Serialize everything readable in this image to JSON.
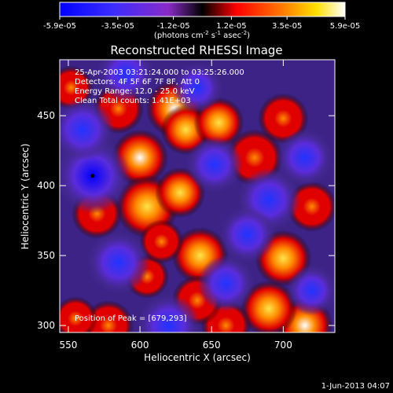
{
  "chart_data": {
    "type": "heatmap",
    "title": "Reconstructed RHESSI Image",
    "xlabel": "Heliocentric X (arcsec)",
    "ylabel": "Heliocentric Y (arcsec)",
    "xlim": [
      544,
      736
    ],
    "ylim": [
      295,
      490
    ],
    "x_ticks": [
      550,
      600,
      650,
      700
    ],
    "y_ticks": [
      300,
      350,
      400,
      450
    ],
    "colorbar": {
      "min": -5.9e-05,
      "max": 5.9e-05,
      "tick_labels": [
        "-5.9e-05",
        "-3.5e-05",
        "-1.2e-05",
        "1.2e-05",
        "3.5e-05",
        "5.9e-05"
      ],
      "units_label": "(photons cm",
      "units_exp1": "-2",
      "units_mid": " s",
      "units_exp2": "-1",
      "units_mid2": " asec",
      "units_exp3": "-2",
      "units_end": ")"
    },
    "annotations": [
      "25-Apr-2003 03:21:24.000 to 03:25:26.000",
      "Detectors: 4F 5F 6F 7F 8F, Att 0",
      "Energy Range: 12.0 - 25.0 keV",
      "Clean     Total counts: 1.41E+03"
    ],
    "peak_label": "Position of Peak = [679,293]",
    "marker": {
      "x": 567,
      "y": 407
    },
    "blobs": [
      {
        "x": 624,
        "y": 455,
        "v": 1.0,
        "r": 9
      },
      {
        "x": 600,
        "y": 420,
        "v": 0.9,
        "r": 9
      },
      {
        "x": 605,
        "y": 385,
        "v": 0.75,
        "r": 10
      },
      {
        "x": 632,
        "y": 440,
        "v": 0.75,
        "r": 8
      },
      {
        "x": 628,
        "y": 395,
        "v": 0.7,
        "r": 8
      },
      {
        "x": 655,
        "y": 445,
        "v": 0.65,
        "r": 8
      },
      {
        "x": 680,
        "y": 420,
        "v": 0.6,
        "r": 9
      },
      {
        "x": 700,
        "y": 448,
        "v": 0.6,
        "r": 8
      },
      {
        "x": 642,
        "y": 350,
        "v": 0.65,
        "r": 9
      },
      {
        "x": 700,
        "y": 348,
        "v": 0.8,
        "r": 9
      },
      {
        "x": 715,
        "y": 300,
        "v": 1.0,
        "r": 9
      },
      {
        "x": 690,
        "y": 312,
        "v": 0.8,
        "r": 9
      },
      {
        "x": 570,
        "y": 380,
        "v": 0.55,
        "r": 8
      },
      {
        "x": 578,
        "y": 300,
        "v": 0.6,
        "r": 8
      },
      {
        "x": 555,
        "y": 305,
        "v": 0.45,
        "r": 7
      },
      {
        "x": 552,
        "y": 470,
        "v": 0.45,
        "r": 7
      },
      {
        "x": 660,
        "y": 300,
        "v": 0.5,
        "r": 8
      },
      {
        "x": 640,
        "y": 318,
        "v": 0.55,
        "r": 8
      },
      {
        "x": 605,
        "y": 335,
        "v": 0.4,
        "r": 7
      },
      {
        "x": 720,
        "y": 385,
        "v": 0.45,
        "r": 8
      },
      {
        "x": 585,
        "y": 455,
        "v": 0.4,
        "r": 8
      },
      {
        "x": 615,
        "y": 360,
        "v": 0.45,
        "r": 7
      },
      {
        "x": 567,
        "y": 407,
        "v": -1.0,
        "r": 12
      },
      {
        "x": 652,
        "y": 415,
        "v": -0.6,
        "r": 9
      },
      {
        "x": 690,
        "y": 390,
        "v": -0.5,
        "r": 10
      },
      {
        "x": 675,
        "y": 365,
        "v": -0.55,
        "r": 9
      },
      {
        "x": 585,
        "y": 345,
        "v": -0.55,
        "r": 10
      },
      {
        "x": 560,
        "y": 440,
        "v": -0.45,
        "r": 10
      },
      {
        "x": 715,
        "y": 420,
        "v": -0.5,
        "r": 9
      },
      {
        "x": 640,
        "y": 470,
        "v": -0.4,
        "r": 8
      },
      {
        "x": 620,
        "y": 300,
        "v": -0.35,
        "r": 10
      },
      {
        "x": 720,
        "y": 325,
        "v": -0.35,
        "r": 8
      },
      {
        "x": 660,
        "y": 330,
        "v": -0.3,
        "r": 9
      },
      {
        "x": 590,
        "y": 480,
        "v": -0.3,
        "r": 9
      }
    ]
  },
  "footer": {
    "timestamp": "1-Jun-2013 04:07"
  }
}
